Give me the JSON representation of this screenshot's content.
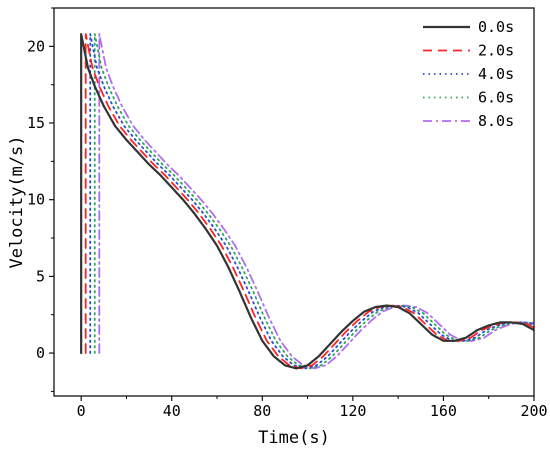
{
  "chart_data": {
    "type": "line",
    "xlabel": "Time(s)",
    "ylabel": "Velocity(m/s)",
    "xlim": [
      -12,
      200
    ],
    "ylim": [
      -2.8,
      22.5
    ],
    "x_ticks": [
      0,
      40,
      80,
      120,
      160,
      200
    ],
    "y_ticks": [
      0,
      5,
      10,
      15,
      20
    ],
    "x_tick_labels": [
      "0",
      "40",
      "80",
      "120",
      "160",
      "200"
    ],
    "y_tick_labels": [
      "0",
      "5",
      "10",
      "15",
      "20"
    ],
    "grid": false,
    "legend_position": "top-right",
    "base_curve": {
      "x": [
        0,
        3,
        6,
        10,
        15,
        20,
        25,
        30,
        35,
        40,
        45,
        50,
        55,
        60,
        65,
        70,
        75,
        80,
        85,
        90,
        95,
        100,
        105,
        110,
        115,
        120,
        125,
        130,
        135,
        140,
        145,
        150,
        155,
        160,
        165,
        170,
        175,
        180,
        185,
        190,
        195,
        200
      ],
      "y": [
        20.8,
        18.6,
        17.4,
        16.1,
        14.8,
        13.9,
        13.1,
        12.3,
        11.6,
        10.8,
        10.0,
        9.1,
        8.1,
        7.0,
        5.6,
        4.0,
        2.3,
        0.8,
        -0.2,
        -0.8,
        -1.0,
        -0.8,
        -0.2,
        0.6,
        1.4,
        2.1,
        2.7,
        3.0,
        3.1,
        3.0,
        2.6,
        1.9,
        1.2,
        0.8,
        0.8,
        1.0,
        1.5,
        1.8,
        2.0,
        2.0,
        1.9,
        1.5
      ]
    },
    "series": [
      {
        "name": "0.0s",
        "delay": 0.0,
        "start_value": 0.0,
        "color": "#333333",
        "dash": "solid"
      },
      {
        "name": "2.0s",
        "delay": 2.0,
        "start_value": 0.0,
        "color": "#ff2222",
        "dash": "dashed"
      },
      {
        "name": "4.0s",
        "delay": 4.0,
        "start_value": 0.0,
        "color": "#1f4fd6",
        "dash": "dotted"
      },
      {
        "name": "6.0s",
        "delay": 6.0,
        "start_value": 0.0,
        "color": "#2aa65a",
        "dash": "dotted"
      },
      {
        "name": "8.0s",
        "delay": 8.0,
        "start_value": 0.0,
        "color": "#b36cf0",
        "dash": "dash-dot"
      }
    ]
  }
}
